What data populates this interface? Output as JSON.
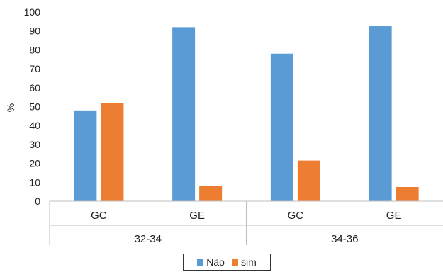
{
  "chart_data": {
    "type": "bar",
    "title": "",
    "xlabel": "",
    "ylabel": "%",
    "ylim": [
      0,
      100
    ],
    "yticks": [
      0,
      10,
      20,
      30,
      40,
      50,
      60,
      70,
      80,
      90,
      100
    ],
    "categories": [
      "GC",
      "GE",
      "GC",
      "GE"
    ],
    "groups": [
      {
        "label": "32-34",
        "categories": [
          0,
          1
        ]
      },
      {
        "label": "34-36",
        "categories": [
          2,
          3
        ]
      }
    ],
    "series": [
      {
        "name": "Não",
        "color": "#5B9BD5",
        "values": [
          48,
          92,
          78,
          92.5
        ]
      },
      {
        "name": "sim",
        "color": "#ED7D31",
        "values": [
          52,
          8,
          21.5,
          7.5
        ]
      }
    ],
    "grid": false,
    "legend_position": "bottom"
  }
}
